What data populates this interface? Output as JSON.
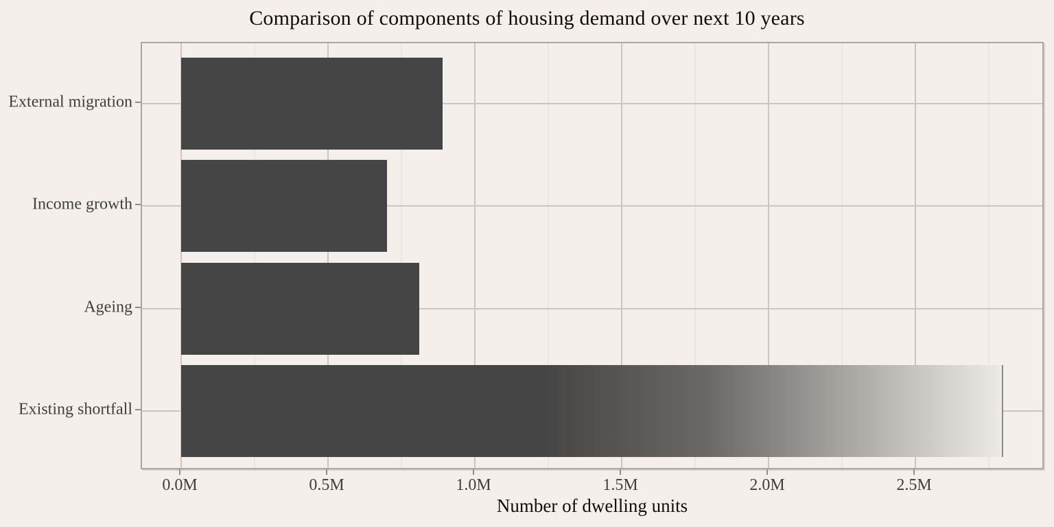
{
  "title": "Comparison of components of housing demand over next 10 years",
  "chart_data": {
    "type": "bar",
    "orientation": "horizontal",
    "title": "Comparison of components of housing demand over next 10 years",
    "xlabel": "Number of dwelling units",
    "ylabel": "",
    "categories": [
      "External migration",
      "Income growth",
      "Ageing",
      "Existing shortfall"
    ],
    "values": [
      0.89,
      0.7,
      0.81,
      2.8
    ],
    "value_unit": "millions of dwelling units",
    "xlim": [
      0,
      2.94
    ],
    "x_major_ticks": [
      0,
      0.5,
      1.0,
      1.5,
      2.0,
      2.5
    ],
    "x_tick_labels": [
      "0.0M",
      "0.5M",
      "1.0M",
      "1.5M",
      "2.0M",
      "2.5M"
    ],
    "x_minor_ticks": [
      0.25,
      0.75,
      1.25,
      1.75,
      2.25,
      2.75
    ],
    "grid": true,
    "legend": false,
    "gradient_bar": {
      "category": "Existing shortfall",
      "solid_until": 1.23,
      "fade_end": 2.79,
      "end_line_at": 2.8
    },
    "colors": {
      "bar": "#464545",
      "background": "#f4efea",
      "grid_major": "#c9c6c3",
      "grid_minor": "#e8e5e2",
      "panel_border": "#a9a7a4",
      "end_line": "#8c8a87",
      "title_text": "#0d0d0d",
      "tick_text": "#3f3f3f"
    }
  }
}
